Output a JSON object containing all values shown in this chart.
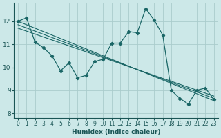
{
  "xlabel": "Humidex (Indice chaleur)",
  "background_color": "#cce8e8",
  "grid_color": "#aacccc",
  "line_color": "#1a6666",
  "xlim": [
    -0.5,
    23.5
  ],
  "ylim": [
    7.8,
    12.8
  ],
  "x_ticks": [
    0,
    1,
    2,
    3,
    4,
    5,
    6,
    7,
    8,
    9,
    10,
    11,
    12,
    13,
    14,
    15,
    16,
    17,
    18,
    19,
    20,
    21,
    22,
    23
  ],
  "y_ticks": [
    8,
    9,
    10,
    11,
    12
  ],
  "main_x": [
    0,
    1,
    2,
    3,
    4,
    5,
    6,
    7,
    8,
    9,
    10,
    11,
    12,
    13,
    14,
    15,
    16,
    17,
    18,
    19,
    20,
    21,
    22,
    23
  ],
  "main_y": [
    12.0,
    12.15,
    11.1,
    10.85,
    10.5,
    9.85,
    10.2,
    9.55,
    9.65,
    10.25,
    10.35,
    11.05,
    11.05,
    11.55,
    11.5,
    12.55,
    12.05,
    11.4,
    9.0,
    8.65,
    8.4,
    9.0,
    9.1,
    8.6
  ],
  "trend_lines": [
    {
      "x0": 0,
      "y0": 12.0,
      "x1": 23,
      "y1": 8.55
    },
    {
      "x0": 0,
      "y0": 11.85,
      "x1": 23,
      "y1": 8.65
    },
    {
      "x0": 0,
      "y0": 11.7,
      "x1": 23,
      "y1": 8.75
    }
  ]
}
